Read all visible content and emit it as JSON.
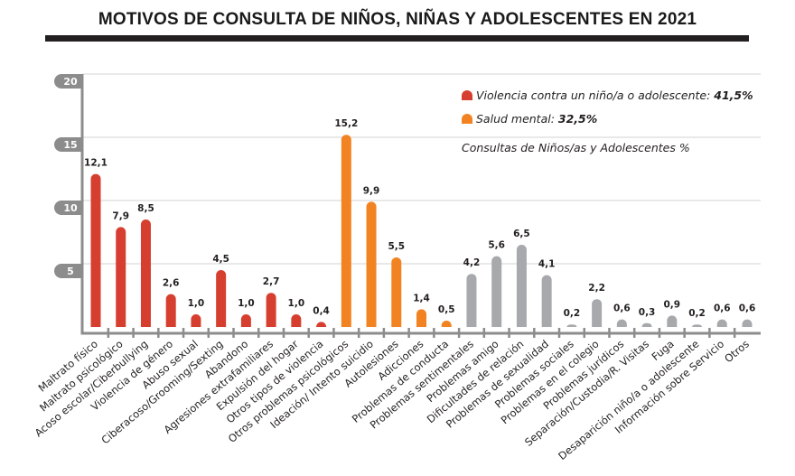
{
  "chart_data": {
    "type": "bar",
    "title": "MOTIVOS DE CONSULTA DE NIÑOS, NIÑAS Y ADOLESCENTES EN 2021",
    "xlabel": "",
    "ylabel": "Consultas de Niños/as y Adolescentes %",
    "ylim": [
      0,
      20
    ],
    "yticks": [
      "5",
      "10",
      "15",
      "20"
    ],
    "ytick_values": [
      5,
      10,
      15,
      20
    ],
    "grid": true,
    "legend_position": "top-right",
    "categories": [
      "Maltrato físico",
      "Maltrato psicológico",
      "Acoso escolar/Ciberbullying",
      "Violencia de género",
      "Abuso sexual",
      "Ciberacoso/Grooming/Sexting",
      "Abandono",
      "Agresiones extrafamiliares",
      "Expulsión del hogar",
      "Otros tipos de violencia",
      "Otros problemas psicológicos",
      "Ideación/ Intento suicidio",
      "Autolesiones",
      "Adicciones",
      "Problemas de conducta",
      "Problemas sentimentales",
      "Problemas amigo",
      "Dificultades de relación",
      "Problemas de sexualidad",
      "Problemas sociales",
      "Problemas en el colegio",
      "Problemas jurídicos",
      "Separación/Custodia/R. Visitas",
      "Fuga",
      "Desaparición niño/a o adolescente",
      "Información sobre Servicio",
      "Otros"
    ],
    "values": [
      12.1,
      7.9,
      8.5,
      2.6,
      1.0,
      4.5,
      1.0,
      2.7,
      1.0,
      0.4,
      15.2,
      9.9,
      5.5,
      1.4,
      0.5,
      4.2,
      5.6,
      6.5,
      4.1,
      0.2,
      2.2,
      0.6,
      0.3,
      0.9,
      0.2,
      0.6,
      0.6
    ],
    "value_labels": [
      "12,1",
      "7,9",
      "8,5",
      "2,6",
      "1,0",
      "4,5",
      "1,0",
      "2,7",
      "1,0",
      "0,4",
      "15,2",
      "9,9",
      "5,5",
      "1,4",
      "0,5",
      "4,2",
      "5,6",
      "6,5",
      "4,1",
      "0,2",
      "2,2",
      "0,6",
      "0,3",
      "0,9",
      "0,2",
      "0,6",
      "0,6"
    ],
    "groups": [
      "violencia",
      "violencia",
      "violencia",
      "violencia",
      "violencia",
      "violencia",
      "violencia",
      "violencia",
      "violencia",
      "violencia",
      "salud",
      "salud",
      "salud",
      "salud",
      "salud",
      "otros",
      "otros",
      "otros",
      "otros",
      "otros",
      "otros",
      "otros",
      "otros",
      "otros",
      "otros",
      "otros",
      "otros"
    ],
    "colors": {
      "violencia": "#d63f2f",
      "salud": "#f28322",
      "otros": "#a7a9ac",
      "axis": "#8c8c8c",
      "grid": "#dcdcdc"
    },
    "legend": [
      {
        "label": "Violencia contra un niño/a o adolescente: ",
        "value": "41,5%",
        "group": "violencia"
      },
      {
        "label": "Salud mental: ",
        "value": "32,5%",
        "group": "salud"
      }
    ]
  }
}
